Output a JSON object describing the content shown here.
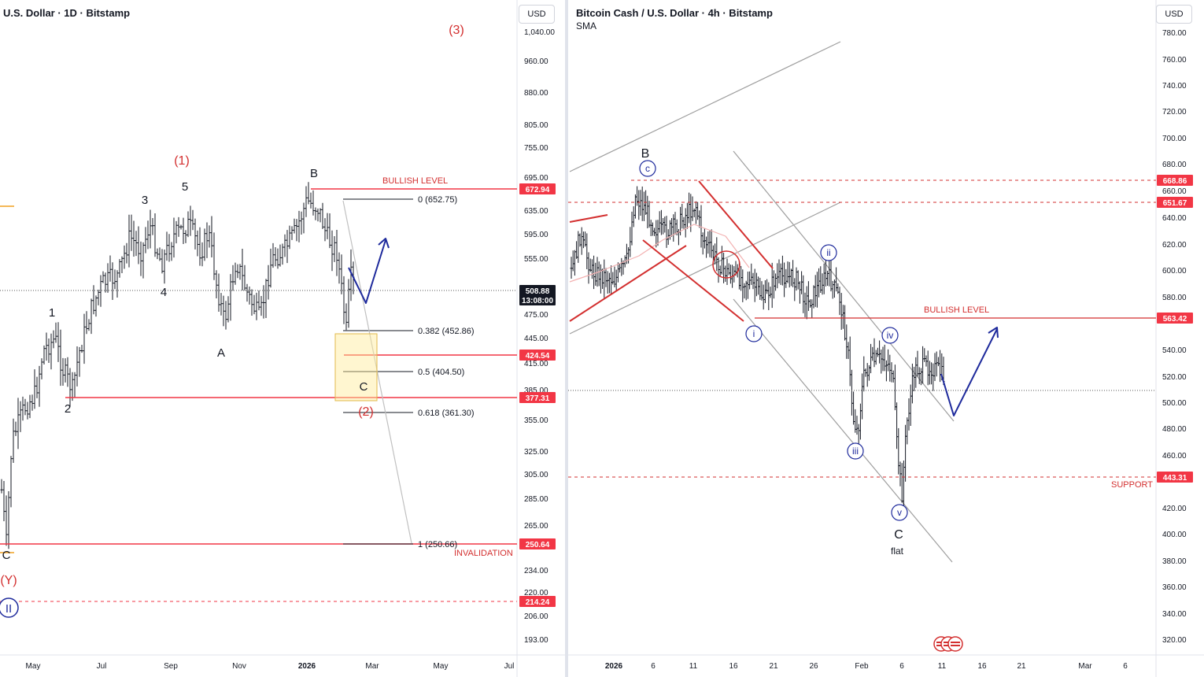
{
  "left_panel": {
    "title": "U.S. Dollar · 1D · Bitstamp",
    "currency_button": "USD",
    "price_axis": [
      "1,040.00",
      "960.00",
      "880.00",
      "805.00",
      "755.00",
      "695.00",
      "635.00",
      "595.00",
      "555.00",
      "475.00",
      "445.00",
      "415.00",
      "385.00",
      "355.00",
      "325.00",
      "305.00",
      "285.00",
      "265.00",
      "234.00",
      "220.00",
      "206.00",
      "193.00"
    ],
    "time_axis": [
      "May",
      "Jul",
      "Sep",
      "Nov",
      "2026",
      "Mar",
      "May",
      "Jul"
    ],
    "price_badges": [
      {
        "value": "672.94",
        "color": "#f23645"
      },
      {
        "value": "508.88",
        "sub": "13:08:00",
        "color": "#131722"
      },
      {
        "value": "424.54",
        "color": "#f23645"
      },
      {
        "value": "377.31",
        "color": "#f23645"
      },
      {
        "value": "250.64",
        "color": "#f23645"
      },
      {
        "value": "214.24",
        "color": "#f23645"
      }
    ],
    "level_labels": [
      "BULLISH LEVEL",
      "INVALIDATION"
    ],
    "fib_labels": [
      "0 (652.75)",
      "0.382 (452.86)",
      "0.5 (404.50)",
      "0.618 (361.30)",
      "1 (250.66)"
    ],
    "wave_labels_black": [
      "1",
      "2",
      "3",
      "4",
      "5",
      "A",
      "B",
      "C",
      "C"
    ],
    "wave_labels_red": [
      "(1)",
      "(2)",
      "(3)",
      "(Y)"
    ],
    "wave_labels_circled": [
      "II"
    ]
  },
  "right_panel": {
    "title": "Bitcoin Cash / U.S. Dollar · 4h · Bitstamp",
    "indicator": "SMA",
    "currency_button": "USD",
    "price_axis": [
      "780.00",
      "760.00",
      "740.00",
      "720.00",
      "700.00",
      "680.00",
      "660.00",
      "640.00",
      "620.00",
      "600.00",
      "580.00",
      "540.00",
      "520.00",
      "500.00",
      "480.00",
      "460.00",
      "420.00",
      "400.00",
      "380.00",
      "360.00",
      "340.00",
      "320.00"
    ],
    "time_axis": [
      "2026",
      "6",
      "11",
      "16",
      "21",
      "26",
      "Feb",
      "6",
      "11",
      "16",
      "21",
      "Mar",
      "6"
    ],
    "price_badges": [
      {
        "value": "668.86",
        "color": "#f23645"
      },
      {
        "value": "651.67",
        "color": "#f23645"
      },
      {
        "value": "563.42",
        "color": "#f23645"
      },
      {
        "value": "443.31",
        "color": "#f23645"
      }
    ],
    "level_labels": [
      "BULLISH LEVEL",
      "SUPPORT"
    ],
    "wave_labels_black": [
      "B",
      "C",
      "flat"
    ],
    "wave_labels_circled": [
      "c",
      "i",
      "ii",
      "iii",
      "iv",
      "v"
    ]
  },
  "chart_data": [
    {
      "type": "candlestick",
      "title": "U.S. Dollar · 1D · Bitstamp",
      "ylabel": "USD",
      "x_ticks": [
        "May",
        "Jul",
        "Sep",
        "Nov",
        "2026",
        "Mar",
        "May",
        "Jul"
      ],
      "horizontal_levels": [
        {
          "label": "BULLISH LEVEL",
          "value": 672.94
        },
        {
          "value": 424.54
        },
        {
          "value": 377.31
        },
        {
          "label": "INVALIDATION",
          "value": 250.64
        },
        {
          "value": 214.24
        }
      ],
      "fibonacci": [
        {
          "ratio": "0",
          "value": 652.75
        },
        {
          "ratio": "0.382",
          "value": 452.86
        },
        {
          "ratio": "0.5",
          "value": 404.5
        },
        {
          "ratio": "0.618",
          "value": 361.3
        },
        {
          "ratio": "1",
          "value": 250.66
        }
      ],
      "last_price": 508.88,
      "countdown": "13:08:00"
    },
    {
      "type": "candlestick",
      "title": "Bitcoin Cash / U.S. Dollar · 4h · Bitstamp",
      "ylabel": "USD",
      "x_ticks": [
        "2026",
        "6",
        "11",
        "16",
        "21",
        "26",
        "Feb",
        "6",
        "11",
        "16",
        "21",
        "Mar",
        "6"
      ],
      "horizontal_levels": [
        {
          "value": 668.86
        },
        {
          "value": 651.67
        },
        {
          "label": "BULLISH LEVEL",
          "value": 563.42
        },
        {
          "label": "SUPPORT",
          "value": 443.31
        }
      ],
      "wave_count": [
        "B",
        "c",
        "i",
        "ii",
        "iii",
        "iv",
        "v",
        "C",
        "flat"
      ],
      "indicator": "SMA"
    }
  ]
}
